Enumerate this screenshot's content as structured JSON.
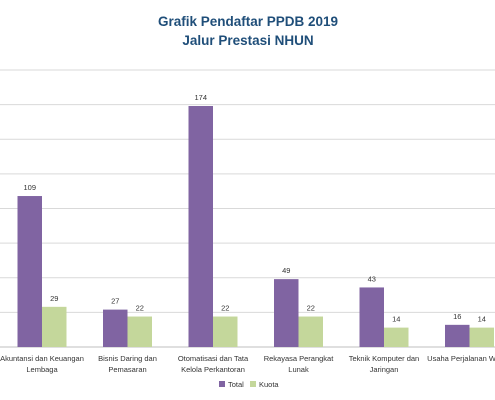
{
  "chart_data": {
    "type": "bar",
    "title": "Grafik Pendaftar PPDB 2019",
    "subtitle": "Jalur Prestasi NHUN",
    "categories": [
      [
        "Akuntansi dan Keuangan",
        "Lembaga"
      ],
      [
        "Bisnis Daring dan",
        "Pemasaran"
      ],
      [
        "Otomatisasi dan Tata",
        "Kelola Perkantoran"
      ],
      [
        "Rekayasa Perangkat",
        "Lunak"
      ],
      [
        "Teknik Komputer dan",
        "Jaringan"
      ],
      [
        "Usaha Perjalanan Wisata",
        ""
      ]
    ],
    "series": [
      {
        "name": "Total",
        "values": [
          109,
          27,
          174,
          49,
          43,
          16
        ]
      },
      {
        "name": "Kuota",
        "values": [
          29,
          22,
          22,
          22,
          14,
          14
        ]
      }
    ],
    "ylim": [
      0,
      200
    ],
    "grid": true,
    "legend_position": "bottom",
    "colors": {
      "Total": "#8064A2",
      "Kuota": "#C4D79B",
      "title": "#1F4E79"
    }
  }
}
